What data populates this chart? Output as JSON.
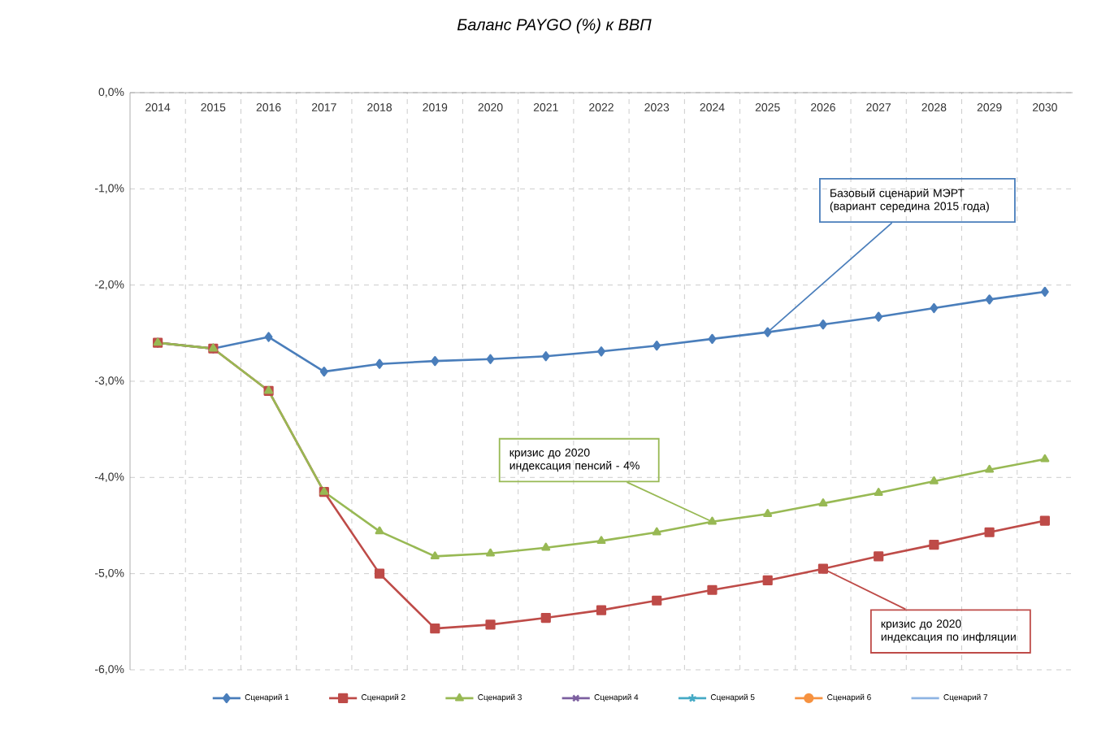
{
  "chart_data": {
    "type": "line",
    "title": "*Баланс PAYGO (%) к ВВП*",
    "categories": [
      "2014",
      "2015",
      "2016",
      "2017",
      "2018",
      "2019",
      "2020",
      "2021",
      "2022",
      "2023",
      "2024",
      "2025",
      "2026",
      "2027",
      "2028",
      "2029",
      "2030"
    ],
    "series": [
      {
        "name": "Сценарий 1",
        "color": "#4a7ebb",
        "marker": "diamond",
        "values": [
          -2.6,
          -2.66,
          -2.54,
          -2.9,
          -2.82,
          -2.79,
          -2.77,
          -2.74,
          -2.69,
          -2.63,
          -2.56,
          -2.49,
          -2.41,
          -2.33,
          -2.24,
          -2.15,
          -2.07
        ]
      },
      {
        "name": "Сценарий 2",
        "color": "#be4b48",
        "marker": "square",
        "values": [
          -2.6,
          -2.66,
          -3.1,
          -4.15,
          -5.0,
          -5.57,
          -5.53,
          -5.46,
          -5.38,
          -5.28,
          -5.17,
          -5.07,
          -4.95,
          -4.82,
          -4.7,
          -4.57,
          -4.45
        ]
      },
      {
        "name": "Сценарий 3",
        "color": "#98b954",
        "marker": "triangle",
        "values": [
          -2.6,
          -2.66,
          -3.1,
          -4.15,
          -4.56,
          -4.82,
          -4.79,
          -4.73,
          -4.66,
          -4.57,
          -4.46,
          -4.38,
          -4.27,
          -4.16,
          -4.04,
          -3.92,
          -3.81
        ]
      },
      {
        "name": "Сценарий 4",
        "color": "#7d60a0",
        "marker": "cross",
        "values": [
          null,
          null,
          null,
          null,
          null,
          null,
          null,
          null,
          null,
          null,
          null,
          null,
          null,
          null,
          null,
          null,
          null
        ]
      },
      {
        "name": "Сценарий 5",
        "color": "#46aac5",
        "marker": "star",
        "values": [
          null,
          null,
          null,
          null,
          null,
          null,
          null,
          null,
          null,
          null,
          null,
          null,
          null,
          null,
          null,
          null,
          null
        ]
      },
      {
        "name": "Сценарий 6",
        "color": "#f69240",
        "marker": "circle",
        "values": [
          null,
          null,
          null,
          null,
          null,
          null,
          null,
          null,
          null,
          null,
          null,
          null,
          null,
          null,
          null,
          null,
          null
        ]
      },
      {
        "name": "Сценарий 7",
        "color": "#8eb4e3",
        "marker": "none",
        "values": [
          null,
          null,
          null,
          null,
          null,
          null,
          null,
          null,
          null,
          null,
          null,
          null,
          null,
          null,
          null,
          null,
          null
        ]
      }
    ],
    "ylim": [
      -6,
      0
    ],
    "yticks": [
      {
        "value": 0,
        "label": "0,0%"
      },
      {
        "value": -1,
        "label": "-1,0%"
      },
      {
        "value": -2,
        "label": "-2,0%"
      },
      {
        "value": -3,
        "label": "-3,0%"
      },
      {
        "value": -4,
        "label": "-4,0%"
      },
      {
        "value": -5,
        "label": "-5,0%"
      },
      {
        "value": -6,
        "label": "-6,0%"
      }
    ],
    "grid": true,
    "legend": "bottom",
    "line_style": "solid",
    "annotations": [
      {
        "text": "Базовый сценарий  МЭРТ (вариант середина 2015 года)",
        "x": "2025",
        "y": -2.49
      },
      {
        "text": "кризис до 2020 индексация пенсий - 4%",
        "x": "2024",
        "y": -4.46
      },
      {
        "text": "кризис до 2020 индексация по инфляции",
        "x": "2026",
        "y": -4.95
      }
    ]
  }
}
